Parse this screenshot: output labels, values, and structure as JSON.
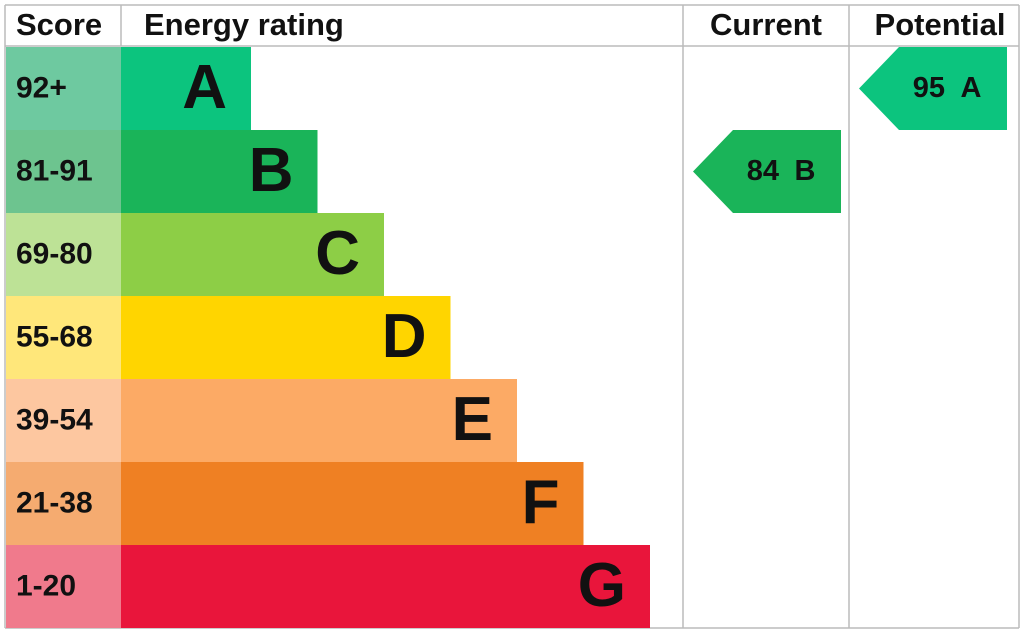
{
  "header": {
    "score": "Score",
    "rating": "Energy rating",
    "current": "Current",
    "potential": "Potential"
  },
  "bands": [
    {
      "score": "92+",
      "letter": "A",
      "color": "#0cc47e",
      "score_color": "#6ec9a0"
    },
    {
      "score": "81-91",
      "letter": "B",
      "color": "#1ab459",
      "score_color": "#6dc48f"
    },
    {
      "score": "69-80",
      "letter": "C",
      "color": "#8dce46",
      "score_color": "#bde296"
    },
    {
      "score": "55-68",
      "letter": "D",
      "color": "#ffd500",
      "score_color": "#ffe77a"
    },
    {
      "score": "39-54",
      "letter": "E",
      "color": "#fcaa65",
      "score_color": "#fdc7a0"
    },
    {
      "score": "21-38",
      "letter": "F",
      "color": "#ef8023",
      "score_color": "#f5ab70"
    },
    {
      "score": "1-20",
      "letter": "G",
      "color": "#e9153b",
      "score_color": "#f07a8c"
    }
  ],
  "current": {
    "score": "84",
    "rating": "B"
  },
  "potential": {
    "score": "95",
    "rating": "A"
  }
}
